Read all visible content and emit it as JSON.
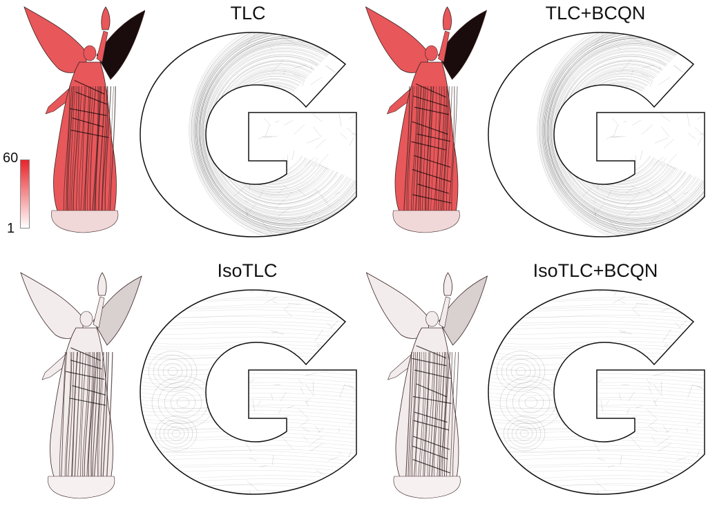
{
  "figure": {
    "titles": {
      "tlc": "TLC",
      "tlc_bcqn": "TLC+BCQN",
      "isotlc": "IsoTLC",
      "isotlc_bcqn": "IsoTLC+BCQN"
    },
    "colorbar": {
      "max_label": "60",
      "min_label": "1",
      "color_high": "#e8242a",
      "color_low": "#ffffff"
    },
    "colors": {
      "statue_distorted": "#e8575a",
      "statue_isometric": "#f3ecec",
      "mesh_line": "#000000"
    }
  }
}
